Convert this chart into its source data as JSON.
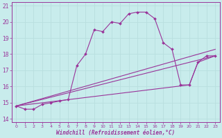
{
  "xlabel": "Windchill (Refroidissement éolien,°C)",
  "bg_color": "#c8ecec",
  "line_color": "#993399",
  "grid_color": "#b8dede",
  "xlim": [
    -0.5,
    23.5
  ],
  "ylim": [
    13.8,
    21.2
  ],
  "xticks": [
    0,
    1,
    2,
    3,
    4,
    5,
    6,
    7,
    8,
    9,
    10,
    11,
    12,
    13,
    14,
    15,
    16,
    17,
    18,
    19,
    20,
    21,
    22,
    23
  ],
  "yticks": [
    14,
    15,
    16,
    17,
    18,
    19,
    20,
    21
  ],
  "main_series": {
    "x": [
      0,
      1,
      2,
      3,
      4,
      5,
      6,
      7,
      8,
      9,
      10,
      11,
      12,
      13,
      14,
      15,
      16,
      17,
      18,
      19,
      20,
      21,
      22,
      23
    ],
    "y": [
      14.8,
      14.6,
      14.6,
      14.9,
      15.0,
      15.1,
      15.2,
      17.3,
      18.0,
      19.5,
      19.4,
      20.0,
      19.9,
      20.5,
      20.6,
      20.6,
      20.2,
      18.7,
      18.3,
      16.1,
      16.1,
      17.5,
      17.9,
      17.9
    ]
  },
  "straight_lines": [
    {
      "x": [
        0,
        23
      ],
      "y": [
        14.8,
        17.9
      ]
    },
    {
      "x": [
        0,
        23
      ],
      "y": [
        14.8,
        18.3
      ]
    },
    {
      "x": [
        0,
        20,
        21,
        23
      ],
      "y": [
        14.8,
        16.1,
        17.5,
        17.9
      ]
    }
  ]
}
